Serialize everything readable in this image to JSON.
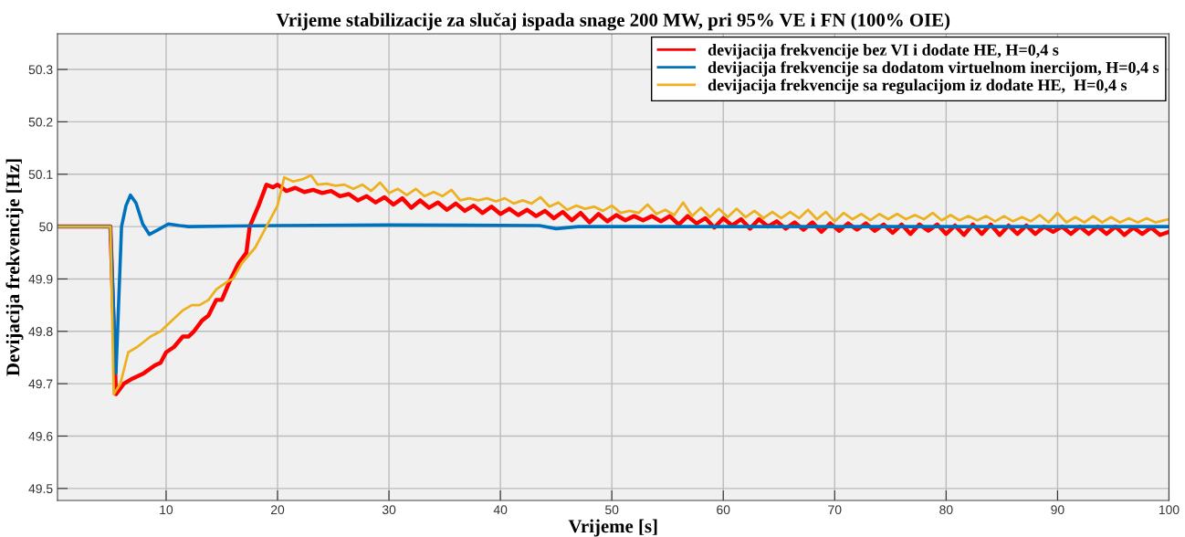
{
  "chart_data": {
    "type": "line",
    "title": "Vrijeme stabilizacije za slučaj ispada snage 200 MW, pri 95% VE i FN (100% OIE)",
    "xlabel": "Vrijeme [s]",
    "ylabel": "Devijacija frekvencije [Hz]",
    "xlim": [
      0.25,
      100
    ],
    "xticks": [
      10,
      20,
      30,
      40,
      50,
      60,
      70,
      80,
      90,
      100
    ],
    "ylim": [
      49.477,
      50.368
    ],
    "yticks": [
      49.5,
      49.6,
      49.7,
      49.8,
      49.9,
      50,
      50.1,
      50.2,
      50.3
    ],
    "grid": true,
    "legend": "top right",
    "line_style": "solid",
    "marker": "none",
    "series": [
      {
        "name": "devijacija frekvencije bez VI i dodate HE, H=0,4 s",
        "color": "#ff0000",
        "x": [
          0.25,
          5.0,
          5.5,
          6.2,
          7,
          8,
          9,
          9.5,
          10,
          10.7,
          11.5,
          12,
          12.5,
          13.2,
          13.8,
          14.5,
          15,
          15.8,
          16.5,
          17.2,
          17.5,
          18.3,
          19,
          19.6,
          20,
          20.8,
          21.6,
          22.4,
          23.2,
          24,
          24.8,
          25.6,
          26.4,
          27.2,
          28,
          28.8,
          29.6,
          30.4,
          31.2,
          32,
          32.8,
          33.6,
          34.4,
          35.2,
          36,
          36.8,
          37.6,
          38.4,
          39.2,
          40,
          40.8,
          41.6,
          42.4,
          43.2,
          44,
          44.8,
          45.6,
          46.4,
          47.2,
          48,
          48.8,
          49.6,
          50.4,
          51.2,
          52,
          52.8,
          53.6,
          54.4,
          55.2,
          56,
          56.8,
          57.6,
          58.4,
          59.2,
          60,
          60.8,
          61.6,
          62.4,
          63.2,
          64,
          64.8,
          65.6,
          66.4,
          67.2,
          68,
          68.8,
          69.6,
          70.4,
          71.2,
          72,
          72.8,
          73.6,
          74.4,
          75.2,
          76,
          76.8,
          77.6,
          78.4,
          79.2,
          80,
          80.8,
          81.6,
          82.4,
          83.2,
          84,
          84.8,
          85.6,
          86.4,
          87.2,
          88,
          88.8,
          89.6,
          90.4,
          91.2,
          92,
          92.8,
          93.6,
          94.4,
          95.2,
          96,
          96.8,
          97.6,
          98.4,
          99.2,
          100
        ],
        "values": [
          50,
          50,
          49.68,
          49.7,
          49.71,
          49.72,
          49.735,
          49.74,
          49.76,
          49.77,
          49.79,
          49.79,
          49.8,
          49.82,
          49.83,
          49.86,
          49.86,
          49.9,
          49.93,
          49.95,
          50.0,
          50.04,
          50.08,
          50.075,
          50.08,
          50.068,
          50.074,
          50.066,
          50.07,
          50.064,
          50.068,
          50.058,
          50.062,
          50.05,
          50.058,
          50.046,
          50.056,
          50.042,
          50.054,
          50.036,
          50.05,
          50.036,
          50.046,
          50.032,
          50.044,
          50.03,
          50.04,
          50.026,
          50.038,
          50.024,
          50.034,
          50.022,
          50.032,
          50.02,
          50.03,
          50.016,
          50.028,
          50.012,
          50.026,
          50.008,
          50.024,
          50.01,
          50.022,
          50.012,
          50.02,
          50.012,
          50.02,
          50.01,
          50.02,
          50.004,
          50.02,
          50.006,
          50.016,
          49.998,
          50.016,
          50.002,
          50.014,
          49.996,
          50.014,
          50.0,
          50.01,
          49.996,
          50.008,
          49.994,
          50.008,
          49.99,
          50.006,
          49.992,
          50.006,
          49.994,
          50.006,
          49.992,
          50.004,
          49.988,
          50.004,
          49.986,
          50.004,
          49.992,
          50.004,
          49.986,
          50.002,
          49.984,
          50.004,
          49.986,
          50.004,
          49.984,
          50.002,
          49.986,
          50.002,
          49.986,
          50.0,
          49.99,
          50.0,
          49.986,
          50.0,
          49.986,
          50.0,
          49.986,
          50.0,
          49.984,
          49.998,
          49.986,
          49.998,
          49.984,
          49.99
        ]
      },
      {
        "name": "devijacija frekvencije sa dodatom virtuelnom inercijom, H=0,4 s",
        "color": "#0072bd",
        "x": [
          0.25,
          5.0,
          5.5,
          6.0,
          6.4,
          6.8,
          7.3,
          7.9,
          8.5,
          9.2,
          10.2,
          11.2,
          12,
          20,
          30,
          43.5,
          45,
          47,
          60,
          80,
          100
        ],
        "values": [
          50,
          50,
          49.72,
          50.0,
          50.04,
          50.06,
          50.045,
          50.005,
          49.985,
          49.993,
          50.005,
          50.002,
          50.0,
          50.002,
          50.003,
          50.002,
          49.996,
          50.0,
          50.0,
          50.0,
          50.0
        ]
      },
      {
        "name": "devijacija frekvencije sa regulacijom iz dodate HE,  H=0,4 s",
        "color": "#edb120",
        "x": [
          0.25,
          5.0,
          5.3,
          5.9,
          6.6,
          7.4,
          8,
          8.6,
          9.5,
          10.5,
          11.5,
          12.3,
          13,
          13.8,
          14.5,
          15.5,
          16,
          16.8,
          18,
          19,
          20,
          20.6,
          21.4,
          22.2,
          23,
          23.6,
          24.4,
          25.2,
          26,
          26.8,
          27.6,
          28.4,
          29.2,
          30,
          30.8,
          31.6,
          32.4,
          33.2,
          34,
          34.8,
          35.6,
          36.4,
          37.2,
          38,
          38.8,
          39.6,
          40.4,
          41.2,
          42,
          42.8,
          43.6,
          44.4,
          45.2,
          46,
          46.8,
          47.6,
          48.4,
          49.2,
          50,
          50.8,
          51.6,
          52.4,
          53.2,
          54,
          54.8,
          55.6,
          56.4,
          57.2,
          58,
          58.8,
          59.6,
          60.4,
          61.2,
          62,
          62.8,
          63.6,
          64.4,
          65.2,
          66,
          66.8,
          67.6,
          68.4,
          69.2,
          70,
          70.8,
          71.6,
          72.4,
          73.2,
          74,
          74.8,
          75.6,
          76.4,
          77.2,
          78,
          78.8,
          79.6,
          80.4,
          81.2,
          82,
          82.8,
          83.6,
          84.4,
          85.2,
          86,
          86.8,
          87.6,
          88.4,
          89.2,
          90,
          90.8,
          91.6,
          92.4,
          93.2,
          94,
          94.8,
          95.6,
          96.4,
          97.2,
          98,
          98.8,
          99.6,
          100
        ],
        "values": [
          50,
          50,
          49.68,
          49.7,
          49.76,
          49.77,
          49.78,
          49.79,
          49.8,
          49.82,
          49.84,
          49.85,
          49.85,
          49.86,
          49.88,
          49.895,
          49.9,
          49.93,
          49.96,
          50.0,
          50.04,
          50.094,
          50.086,
          50.09,
          50.098,
          50.08,
          50.082,
          50.078,
          50.08,
          50.072,
          50.08,
          50.068,
          50.084,
          50.064,
          50.072,
          50.06,
          50.072,
          50.058,
          50.066,
          50.058,
          50.07,
          50.05,
          50.054,
          50.05,
          50.054,
          50.048,
          50.054,
          50.044,
          50.05,
          50.044,
          50.056,
          50.038,
          50.046,
          50.032,
          50.04,
          50.034,
          50.038,
          50.03,
          50.04,
          50.026,
          50.03,
          50.026,
          50.042,
          50.024,
          50.032,
          50.022,
          50.046,
          50.02,
          50.036,
          50.018,
          50.034,
          50.018,
          50.034,
          50.018,
          50.03,
          50.016,
          50.028,
          50.016,
          50.028,
          50.016,
          50.032,
          50.014,
          50.028,
          50.01,
          50.026,
          50.014,
          50.024,
          50.012,
          50.024,
          50.014,
          50.024,
          50.014,
          50.022,
          50.014,
          50.026,
          50.012,
          50.022,
          50.012,
          50.02,
          50.012,
          50.02,
          50.01,
          50.02,
          50.01,
          50.018,
          50.01,
          50.022,
          50.008,
          50.026,
          50.008,
          50.018,
          50.008,
          50.02,
          50.008,
          50.018,
          50.008,
          50.016,
          50.008,
          50.016,
          50.008,
          50.012,
          50.014
        ]
      }
    ]
  }
}
